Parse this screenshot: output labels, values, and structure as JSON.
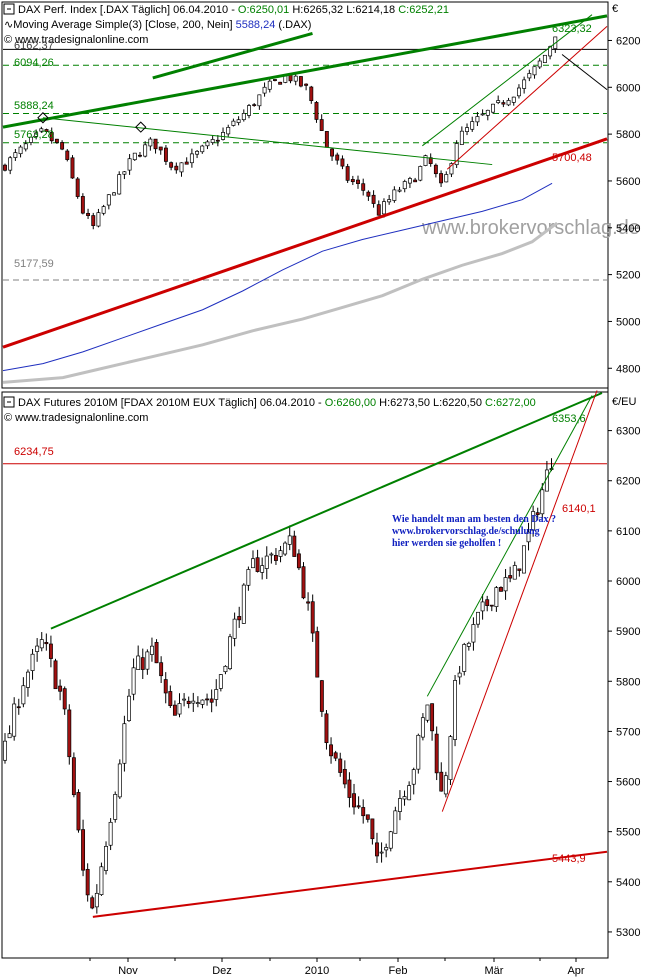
{
  "chart_data": [
    {
      "type": "candlestick",
      "header": {
        "title": "DAX Perf. Index [.DAX Täglich] 06.04.2010",
        "open": "O:6250,01",
        "high": "H:6265,32",
        "low": "L:6214,18",
        "close": "C:6252,21",
        "indicator": "Moving Average Simple(3) [Close, 200, Nein]",
        "indicator_value": "5588,24",
        "indicator_suffix": "(.DAX)",
        "source": "© www.tradesignalonline.com",
        "currency": "€"
      },
      "watermark": "www.brokervorschlag.de",
      "ylim": [
        4720,
        6360
      ],
      "y_ticks": [
        "4800",
        "5000",
        "5200",
        "5400",
        "5600",
        "5800",
        "6000",
        "6200"
      ],
      "level_labels": [
        "6162,37",
        "6094,26",
        "5888,24",
        "5763,28",
        "5177,59"
      ],
      "value_labels": [
        "6323,32",
        "5700,48"
      ],
      "horizontal_levels": [
        {
          "label": "6162,37",
          "value": 6162,
          "color": "#000000"
        },
        {
          "label": "6094,26",
          "value": 6094,
          "color": "#008000"
        },
        {
          "label": "5888,24",
          "value": 5888,
          "color": "#008000"
        },
        {
          "label": "5763,28",
          "value": 5763,
          "color": "#008000"
        },
        {
          "label": "5177,59",
          "value": 5177,
          "color": "#808080"
        }
      ],
      "ma_fast": {
        "color": "#1f2fbf",
        "points": [
          [
            0,
            4790
          ],
          [
            40,
            4820
          ],
          [
            80,
            4870
          ],
          [
            120,
            4930
          ],
          [
            160,
            4990
          ],
          [
            200,
            5050
          ],
          [
            240,
            5130
          ],
          [
            280,
            5220
          ],
          [
            320,
            5300
          ],
          [
            360,
            5350
          ],
          [
            400,
            5390
          ],
          [
            440,
            5430
          ],
          [
            480,
            5470
          ],
          [
            520,
            5520
          ],
          [
            550,
            5590
          ]
        ]
      },
      "ma_slow": {
        "color": "#c0c0c0",
        "points": [
          [
            0,
            4740
          ],
          [
            60,
            4760
          ],
          [
            100,
            4800
          ],
          [
            150,
            4850
          ],
          [
            200,
            4900
          ],
          [
            250,
            4960
          ],
          [
            300,
            5010
          ],
          [
            340,
            5060
          ],
          [
            380,
            5110
          ],
          [
            420,
            5180
          ],
          [
            460,
            5240
          ],
          [
            500,
            5290
          ],
          [
            530,
            5340
          ],
          [
            555,
            5420
          ]
        ]
      },
      "trend_lines": [
        {
          "color": "#cc0000",
          "width": 3,
          "points": [
            [
              0,
              4890
            ],
            [
              605,
              5780
            ]
          ]
        },
        {
          "color": "#008000",
          "width": 3,
          "points": [
            [
              0,
              5830
            ],
            [
              605,
              6305
            ]
          ]
        },
        {
          "color": "#008000",
          "width": 3,
          "points": [
            [
              150,
              6040
            ],
            [
              310,
              6230
            ]
          ]
        },
        {
          "color": "#008000",
          "width": 1,
          "points": [
            [
              40,
              5870
            ],
            [
              490,
              5670
            ]
          ]
        },
        {
          "color": "#008000",
          "width": 1,
          "points": [
            [
              420,
              5750
            ],
            [
              590,
              6310
            ]
          ]
        },
        {
          "color": "#cc0000",
          "width": 1,
          "points": [
            [
              445,
              5650
            ],
            [
              605,
              6260
            ]
          ]
        },
        {
          "color": "#000000",
          "width": 1,
          "points": [
            [
              560,
              6140
            ],
            [
              605,
              5990
            ]
          ]
        }
      ],
      "price_path": [
        [
          0,
          5660
        ],
        [
          20,
          5740
        ],
        [
          40,
          5810
        ],
        [
          60,
          5730
        ],
        [
          80,
          5470
        ],
        [
          90,
          5400
        ],
        [
          110,
          5560
        ],
        [
          130,
          5700
        ],
        [
          150,
          5770
        ],
        [
          170,
          5660
        ],
        [
          190,
          5700
        ],
        [
          220,
          5800
        ],
        [
          240,
          5880
        ],
        [
          265,
          6000
        ],
        [
          285,
          6050
        ],
        [
          305,
          5990
        ],
        [
          325,
          5740
        ],
        [
          345,
          5610
        ],
        [
          365,
          5550
        ],
        [
          375,
          5460
        ],
        [
          395,
          5560
        ],
        [
          410,
          5600
        ],
        [
          425,
          5700
        ],
        [
          440,
          5560
        ],
        [
          455,
          5780
        ],
        [
          475,
          5860
        ],
        [
          495,
          5920
        ],
        [
          515,
          5990
        ],
        [
          530,
          6060
        ],
        [
          545,
          6150
        ],
        [
          555,
          6250
        ]
      ]
    },
    {
      "type": "candlestick",
      "header": {
        "title": "DAX Futures 2010M [FDAX 2010M EUX Täglich] 06.04.2010",
        "open": "O:6260,00",
        "high": "H:6273,50",
        "low": "L:6220,50",
        "close": "C:6272,00",
        "source": "© www.tradesignalonline.com",
        "currency": "€/EU"
      },
      "annotation": [
        "Wie handelt man am besten den Dax ?",
        "www.brokervorschlag.de/schulung",
        "hier werden sie geholfen !"
      ],
      "ylim": [
        5250,
        6375
      ],
      "y_ticks": [
        "5300",
        "5400",
        "5500",
        "5600",
        "5700",
        "5800",
        "5900",
        "6000",
        "6100",
        "6200",
        "6300"
      ],
      "level_labels": [
        "6234,75"
      ],
      "value_labels": [
        "6353,6",
        "6140,1",
        "5443,9"
      ],
      "horizontal_levels": [
        {
          "label": "6234,75",
          "value": 6234,
          "color": "#cc0000"
        }
      ],
      "trend_lines": [
        {
          "color": "#008000",
          "width": 2,
          "points": [
            [
              48,
              5905
            ],
            [
              600,
              6375
            ]
          ]
        },
        {
          "color": "#cc0000",
          "width": 2,
          "points": [
            [
              90,
              5330
            ],
            [
              605,
              5460
            ]
          ]
        },
        {
          "color": "#008000",
          "width": 1,
          "points": [
            [
              425,
              5770
            ],
            [
              590,
              6370
            ]
          ]
        },
        {
          "color": "#cc0000",
          "width": 1,
          "points": [
            [
              440,
              5540
            ],
            [
              595,
              6380
            ]
          ]
        }
      ],
      "price_path": [
        [
          0,
          5650
        ],
        [
          20,
          5800
        ],
        [
          40,
          5880
        ],
        [
          60,
          5760
        ],
        [
          80,
          5420
        ],
        [
          90,
          5340
        ],
        [
          110,
          5560
        ],
        [
          130,
          5820
        ],
        [
          150,
          5860
        ],
        [
          170,
          5720
        ],
        [
          190,
          5780
        ],
        [
          210,
          5760
        ],
        [
          230,
          5900
        ],
        [
          250,
          6030
        ],
        [
          270,
          6050
        ],
        [
          290,
          6080
        ],
        [
          305,
          5950
        ],
        [
          325,
          5680
        ],
        [
          345,
          5580
        ],
        [
          365,
          5520
        ],
        [
          375,
          5430
        ],
        [
          395,
          5560
        ],
        [
          410,
          5620
        ],
        [
          425,
          5760
        ],
        [
          440,
          5560
        ],
        [
          455,
          5820
        ],
        [
          475,
          5920
        ],
        [
          495,
          5990
        ],
        [
          510,
          6000
        ],
        [
          525,
          6080
        ],
        [
          540,
          6180
        ],
        [
          552,
          6260
        ]
      ]
    }
  ],
  "x_axis": {
    "labels": [
      "Nov",
      "Dez",
      "2010",
      "Feb",
      "Mär",
      "Apr"
    ]
  }
}
